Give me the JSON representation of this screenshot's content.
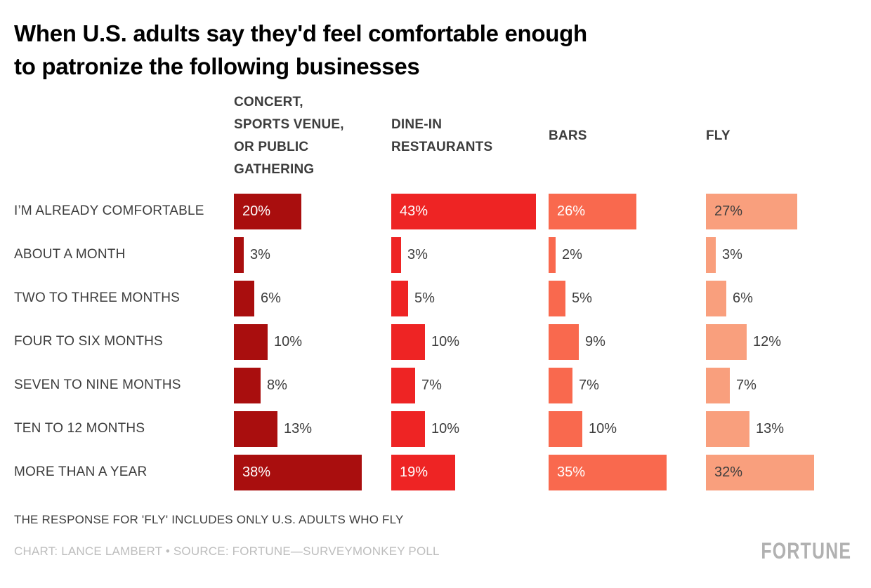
{
  "title": {
    "line1": "When U.S. adults say they'd feel comfortable enough",
    "line2": "to patronize the following businesses"
  },
  "chart_data": {
    "type": "bar",
    "orientation": "horizontal",
    "unit": "%",
    "value_labels": true,
    "xlim": [
      0,
      46
    ],
    "categories": [
      "I’M ALREADY COMFORTABLE",
      "ABOUT A MONTH",
      "TWO TO THREE MONTHS",
      "FOUR TO SIX MONTHS",
      "SEVEN TO NINE MONTHS",
      "TEN TO 12 MONTHS",
      "MORE THAN A YEAR"
    ],
    "series": [
      {
        "name": "CONCERT,\nSPORTS VENUE,\nOR PUBLIC\nGATHERING",
        "color": "#a90e0e",
        "inside_label_color": "#ffffff",
        "values": [
          20,
          3,
          6,
          10,
          8,
          13,
          38
        ]
      },
      {
        "name": "DINE-IN\nRESTAURANTS",
        "color": "#ee2424",
        "inside_label_color": "#ffffff",
        "values": [
          43,
          3,
          5,
          10,
          7,
          10,
          19
        ]
      },
      {
        "name": "BARS",
        "color": "#f9694e",
        "inside_label_color": "#ffffff",
        "values": [
          26,
          2,
          5,
          9,
          7,
          10,
          35
        ]
      },
      {
        "name": "FLY",
        "color": "#f99f7d",
        "inside_label_color": "#3d3d3d",
        "values": [
          27,
          3,
          6,
          12,
          7,
          13,
          32
        ]
      }
    ]
  },
  "footnote": "THE RESPONSE FOR 'FLY' INCLUDES ONLY U.S. ADULTS WHO FLY",
  "credit": "CHART: LANCE LAMBERT • SOURCE: FORTUNE—SURVEYMONKEY POLL",
  "brand": "FORTUNE"
}
